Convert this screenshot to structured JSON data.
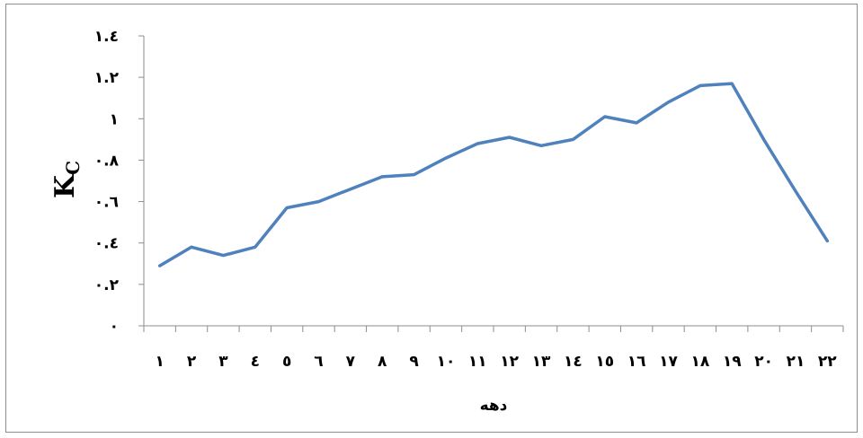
{
  "chart_data": {
    "type": "line",
    "categories": [
      "١",
      "٢",
      "٣",
      "٤",
      "٥",
      "٦",
      "٧",
      "٨",
      "٩",
      "١٠",
      "١١",
      "١٢",
      "١٣",
      "١٤",
      "١٥",
      "١٦",
      "١٧",
      "١٨",
      "١٩",
      "٢٠",
      "٢١",
      "٢٢"
    ],
    "series": [
      {
        "values": [
          0.29,
          0.38,
          0.34,
          0.38,
          0.57,
          0.6,
          0.66,
          0.72,
          0.73,
          0.81,
          0.88,
          0.91,
          0.87,
          0.9,
          1.01,
          0.98,
          1.08,
          1.16,
          1.17,
          0.9,
          0.65,
          0.41
        ],
        "color": "#4f81bd"
      }
    ],
    "xlabel": "دهه",
    "ylabel_main": "K",
    "ylabel_sub": "C",
    "ylim": [
      0,
      1.4
    ],
    "yticks": [
      {
        "value": 0,
        "label": "٠"
      },
      {
        "value": 0.2,
        "label": "٠.٢"
      },
      {
        "value": 0.4,
        "label": "٠.٤"
      },
      {
        "value": 0.6,
        "label": "٠.٦"
      },
      {
        "value": 0.8,
        "label": "٠.٨"
      },
      {
        "value": 1.0,
        "label": "١"
      },
      {
        "value": 1.2,
        "label": "١.٢"
      },
      {
        "value": 1.4,
        "label": "١.٤"
      }
    ],
    "grid": false,
    "legend": "none"
  }
}
